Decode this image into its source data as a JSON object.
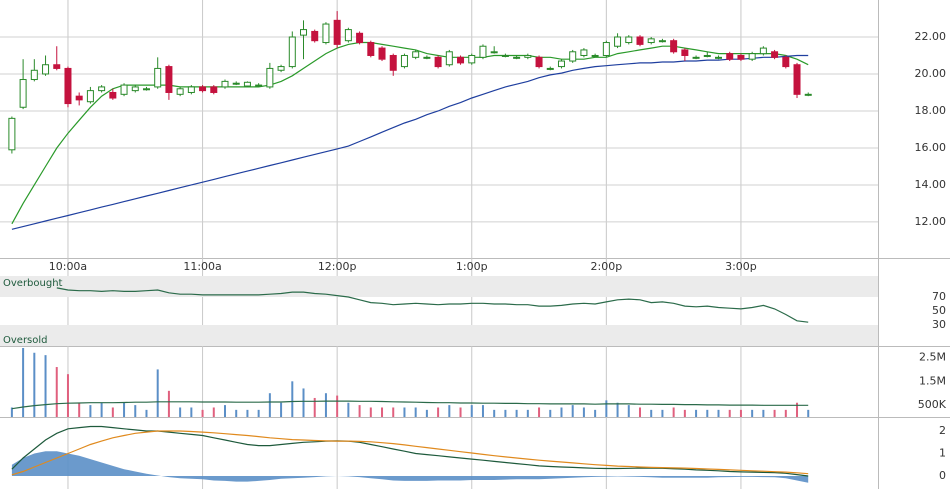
{
  "chart_data": [
    {
      "type": "candlestick",
      "x": [
        575,
        580,
        585,
        590,
        595,
        600,
        605,
        610,
        615,
        620,
        625,
        630,
        635,
        640,
        645,
        650,
        655,
        660,
        665,
        670,
        675,
        680,
        685,
        690,
        695,
        700,
        705,
        710,
        715,
        720,
        725,
        730,
        735,
        740,
        745,
        750,
        755,
        760,
        765,
        770,
        775,
        780,
        785,
        790,
        795,
        800,
        805,
        810,
        815,
        820,
        825,
        830,
        835,
        840,
        845,
        850,
        855,
        860,
        865,
        870,
        875,
        880,
        885,
        890,
        895,
        900,
        905,
        910,
        915,
        920,
        925,
        930
      ],
      "xlim": [
        569.7,
        961.1
      ],
      "xticks": [
        {
          "value": 600,
          "label": "10:00a"
        },
        {
          "value": 660,
          "label": "11:00a"
        },
        {
          "value": 720,
          "label": "12:00p"
        },
        {
          "value": 780,
          "label": "1:00p"
        },
        {
          "value": 840,
          "label": "2:00p"
        },
        {
          "value": 900,
          "label": "3:00p"
        }
      ],
      "open": [
        15.9,
        18.2,
        19.7,
        20.0,
        20.5,
        20.3,
        18.8,
        18.5,
        19.1,
        19.0,
        18.9,
        19.1,
        19.2,
        19.3,
        20.4,
        18.9,
        19.0,
        19.3,
        19.3,
        19.3,
        19.5,
        19.35,
        19.4,
        19.3,
        20.2,
        20.4,
        22.1,
        22.3,
        21.7,
        22.9,
        21.8,
        22.2,
        21.7,
        21.4,
        21.0,
        20.4,
        20.9,
        20.9,
        20.9,
        20.5,
        20.9,
        20.6,
        20.9,
        21.2,
        21.0,
        20.9,
        20.9,
        20.9,
        20.3,
        20.4,
        20.7,
        21.0,
        21.0,
        21.0,
        21.5,
        21.7,
        22.0,
        21.7,
        21.8,
        21.8,
        21.3,
        20.9,
        21.0,
        20.9,
        21.1,
        21.0,
        20.8,
        21.1,
        21.2,
        20.9,
        20.5,
        18.9
      ],
      "high": [
        17.7,
        20.8,
        20.8,
        21.0,
        21.5,
        20.4,
        19.0,
        19.3,
        19.4,
        19.2,
        19.5,
        19.4,
        19.3,
        20.9,
        20.5,
        19.3,
        19.4,
        19.4,
        19.4,
        19.7,
        19.6,
        19.6,
        19.5,
        20.6,
        20.5,
        22.3,
        22.9,
        22.4,
        22.8,
        23.4,
        22.5,
        22.3,
        21.8,
        21.5,
        21.1,
        21.1,
        21.3,
        21.0,
        21.0,
        21.3,
        21.0,
        21.1,
        21.6,
        21.5,
        21.1,
        21.0,
        21.1,
        21.0,
        20.4,
        20.8,
        21.3,
        21.4,
        21.1,
        21.8,
        22.2,
        22.1,
        22.1,
        22.0,
        21.9,
        21.9,
        21.4,
        21.0,
        21.2,
        21.0,
        21.2,
        21.1,
        21.2,
        21.5,
        21.3,
        21.0,
        20.6,
        19.0
      ],
      "low": [
        15.7,
        18.1,
        19.6,
        19.9,
        20.2,
        18.2,
        18.3,
        18.4,
        19.0,
        18.6,
        18.8,
        19.0,
        19.1,
        19.2,
        18.6,
        18.8,
        18.9,
        19.0,
        18.9,
        19.2,
        19.4,
        19.3,
        19.3,
        19.2,
        20.1,
        20.3,
        20.8,
        21.7,
        21.6,
        21.4,
        21.7,
        21.6,
        20.9,
        20.7,
        19.9,
        20.3,
        20.8,
        20.8,
        20.3,
        20.4,
        20.5,
        20.5,
        20.8,
        21.1,
        20.9,
        20.8,
        20.8,
        20.3,
        20.2,
        20.3,
        20.6,
        20.9,
        20.9,
        20.9,
        21.4,
        21.6,
        21.5,
        21.6,
        21.7,
        21.1,
        20.7,
        20.8,
        20.9,
        20.8,
        20.7,
        20.7,
        20.7,
        21.0,
        20.8,
        20.3,
        18.7,
        18.8
      ],
      "close": [
        17.6,
        19.7,
        20.2,
        20.5,
        20.3,
        18.4,
        18.6,
        19.1,
        19.3,
        18.7,
        19.4,
        19.3,
        19.2,
        20.3,
        19.0,
        19.2,
        19.3,
        19.1,
        19.0,
        19.6,
        19.5,
        19.55,
        19.4,
        20.3,
        20.4,
        22.0,
        22.4,
        21.8,
        22.7,
        21.6,
        22.4,
        21.7,
        21.0,
        20.8,
        20.2,
        21.0,
        21.2,
        20.9,
        20.4,
        21.2,
        20.6,
        21.0,
        21.5,
        21.2,
        21.0,
        20.9,
        21.0,
        20.4,
        20.3,
        20.7,
        21.2,
        21.3,
        21.0,
        21.7,
        22.0,
        22.0,
        21.6,
        21.9,
        21.8,
        21.2,
        21.0,
        20.9,
        21.0,
        20.9,
        20.8,
        20.8,
        21.1,
        21.4,
        20.9,
        20.4,
        18.9,
        18.9
      ],
      "up_color": "#2a8a2a",
      "down_color": "#c4123e",
      "series": [
        {
          "color": "#2a9a2a",
          "values": [
            11.9,
            13.0,
            14.0,
            15.0,
            16.0,
            16.8,
            17.5,
            18.2,
            18.8,
            19.2,
            19.4,
            19.4,
            19.4,
            19.4,
            19.4,
            19.3,
            19.3,
            19.3,
            19.3,
            19.3,
            19.3,
            19.3,
            19.3,
            19.4,
            19.6,
            19.9,
            20.3,
            20.7,
            21.1,
            21.4,
            21.6,
            21.7,
            21.7,
            21.6,
            21.5,
            21.4,
            21.3,
            21.1,
            21.0,
            20.9,
            20.9,
            20.9,
            20.9,
            21.0,
            21.0,
            21.0,
            21.0,
            20.9,
            20.9,
            20.8,
            20.8,
            20.8,
            20.9,
            20.9,
            21.1,
            21.2,
            21.3,
            21.4,
            21.5,
            21.5,
            21.4,
            21.3,
            21.2,
            21.1,
            21.1,
            21.1,
            21.1,
            21.1,
            21.1,
            21.0,
            20.8,
            20.5
          ]
        },
        {
          "color": "#1f3f9f",
          "values": [
            11.6,
            11.75,
            11.9,
            12.05,
            12.2,
            12.35,
            12.5,
            12.65,
            12.8,
            12.95,
            13.1,
            13.25,
            13.4,
            13.55,
            13.7,
            13.85,
            14.0,
            14.15,
            14.3,
            14.45,
            14.6,
            14.75,
            14.9,
            15.05,
            15.2,
            15.35,
            15.5,
            15.65,
            15.8,
            15.95,
            16.1,
            16.35,
            16.6,
            16.85,
            17.1,
            17.35,
            17.55,
            17.8,
            18.0,
            18.25,
            18.45,
            18.7,
            18.9,
            19.1,
            19.3,
            19.45,
            19.6,
            19.8,
            19.95,
            20.05,
            20.2,
            20.3,
            20.4,
            20.45,
            20.5,
            20.55,
            20.6,
            20.6,
            20.65,
            20.65,
            20.7,
            20.7,
            20.75,
            20.75,
            20.8,
            20.8,
            20.85,
            20.9,
            20.9,
            20.95,
            21.0,
            21.0
          ]
        }
      ],
      "ylim": [
        10.05,
        24.0
      ],
      "yticks": [
        {
          "value": 12,
          "label": "12.00"
        },
        {
          "value": 14,
          "label": "14.00"
        },
        {
          "value": 16,
          "label": "16.00"
        },
        {
          "value": 18,
          "label": "18.00"
        },
        {
          "value": 20,
          "label": "20.00"
        },
        {
          "value": 22,
          "label": "22.00"
        }
      ],
      "grid": true
    },
    {
      "type": "line",
      "overbought_label": "Overbought",
      "oversold_label": "Oversold",
      "band_color": "#ebebeb",
      "series": [
        {
          "color": "#2b6b4a",
          "values": [
            null,
            null,
            null,
            null,
            83,
            80,
            79,
            79,
            78,
            79,
            78,
            78,
            79,
            80,
            76,
            74,
            74,
            73,
            73,
            73,
            73,
            73,
            73,
            74,
            75,
            77,
            77,
            75,
            74,
            72,
            70,
            66,
            62,
            61,
            59,
            60,
            61,
            60,
            59,
            60,
            60,
            61,
            61,
            60,
            60,
            59,
            59,
            57,
            57,
            58,
            60,
            61,
            60,
            63,
            66,
            67,
            66,
            62,
            63,
            61,
            57,
            56,
            57,
            55,
            54,
            53,
            55,
            58,
            53,
            45,
            36,
            34
          ]
        }
      ],
      "ylim": [
        0,
        100
      ],
      "yticks": [
        70,
        50,
        30
      ],
      "grid": false
    },
    {
      "type": "bar",
      "values": [
        400000,
        2900000,
        2700000,
        2600000,
        2100000,
        1800000,
        600000,
        500000,
        600000,
        400000,
        600000,
        500000,
        300000,
        2000000,
        1100000,
        400000,
        400000,
        300000,
        400000,
        500000,
        300000,
        300000,
        300000,
        1000000,
        600000,
        1500000,
        1200000,
        800000,
        1000000,
        900000,
        600000,
        500000,
        400000,
        400000,
        400000,
        400000,
        400000,
        300000,
        400000,
        500000,
        400000,
        500000,
        500000,
        300000,
        300000,
        300000,
        300000,
        400000,
        300000,
        400000,
        500000,
        400000,
        300000,
        700000,
        600000,
        500000,
        400000,
        300000,
        300000,
        400000,
        300000,
        300000,
        300000,
        300000,
        300000,
        300000,
        300000,
        300000,
        300000,
        300000,
        600000,
        300000
      ],
      "up_color": "#5b8fc7",
      "down_color": "#e0607e",
      "series": [
        {
          "color": "#2b6b4a",
          "values": [
            350000,
            420000,
            480000,
            520000,
            560000,
            580000,
            590000,
            600000,
            600000,
            600000,
            610000,
            620000,
            620000,
            640000,
            640000,
            640000,
            640000,
            630000,
            630000,
            630000,
            620000,
            620000,
            620000,
            630000,
            630000,
            650000,
            660000,
            660000,
            670000,
            670000,
            670000,
            660000,
            660000,
            650000,
            640000,
            630000,
            620000,
            610000,
            600000,
            600000,
            590000,
            590000,
            580000,
            580000,
            570000,
            570000,
            560000,
            560000,
            550000,
            550000,
            550000,
            550000,
            540000,
            550000,
            550000,
            550000,
            540000,
            540000,
            530000,
            530000,
            520000,
            520000,
            510000,
            510000,
            500000,
            500000,
            500000,
            490000,
            490000,
            490000,
            490000,
            490000
          ]
        }
      ],
      "ylim": [
        0,
        2900000
      ],
      "yticks": [
        {
          "value": 500000,
          "label": "500K"
        },
        {
          "value": 1500000,
          "label": "1.5M"
        },
        {
          "value": 2500000,
          "label": "2.5M"
        }
      ],
      "grid": false
    },
    {
      "type": "macd",
      "histogram": {
        "color": "#5b8fc7",
        "values": [
          0.5,
          0.8,
          1.0,
          1.1,
          1.1,
          1.0,
          0.9,
          0.75,
          0.6,
          0.45,
          0.3,
          0.2,
          0.1,
          0.02,
          -0.05,
          -0.1,
          -0.12,
          -0.15,
          -0.2,
          -0.22,
          -0.25,
          -0.25,
          -0.22,
          -0.18,
          -0.12,
          -0.1,
          -0.08,
          -0.05,
          -0.02,
          0,
          -0.02,
          -0.05,
          -0.1,
          -0.15,
          -0.2,
          -0.22,
          -0.22,
          -0.22,
          -0.2,
          -0.2,
          -0.2,
          -0.18,
          -0.18,
          -0.18,
          -0.16,
          -0.15,
          -0.15,
          -0.15,
          -0.12,
          -0.1,
          -0.08,
          -0.06,
          -0.04,
          -0.03,
          -0.02,
          -0.03,
          -0.04,
          -0.06,
          -0.08,
          -0.08,
          -0.08,
          -0.08,
          -0.08,
          -0.06,
          -0.05,
          -0.04,
          -0.04,
          -0.05,
          -0.06,
          -0.1,
          -0.2,
          -0.3
        ]
      },
      "series": [
        {
          "color": "#1e5a3c",
          "values": [
            0.3,
            0.8,
            1.2,
            1.6,
            1.9,
            2.1,
            2.15,
            2.2,
            2.2,
            2.15,
            2.1,
            2.05,
            2.0,
            2.0,
            1.95,
            1.9,
            1.85,
            1.8,
            1.7,
            1.6,
            1.5,
            1.4,
            1.35,
            1.35,
            1.4,
            1.45,
            1.5,
            1.52,
            1.55,
            1.56,
            1.55,
            1.5,
            1.4,
            1.3,
            1.2,
            1.1,
            1.0,
            0.95,
            0.9,
            0.85,
            0.8,
            0.75,
            0.7,
            0.65,
            0.6,
            0.55,
            0.5,
            0.45,
            0.42,
            0.4,
            0.38,
            0.36,
            0.34,
            0.33,
            0.33,
            0.34,
            0.35,
            0.35,
            0.34,
            0.32,
            0.3,
            0.27,
            0.25,
            0.23,
            0.2,
            0.18,
            0.17,
            0.16,
            0.15,
            0.12,
            0.06,
            0.0
          ]
        },
        {
          "color": "#e08a1e",
          "values": [
            0.05,
            0.2,
            0.4,
            0.6,
            0.8,
            1.0,
            1.2,
            1.4,
            1.55,
            1.7,
            1.8,
            1.9,
            1.95,
            2.0,
            2.0,
            2.0,
            1.98,
            1.95,
            1.92,
            1.88,
            1.84,
            1.8,
            1.75,
            1.7,
            1.66,
            1.62,
            1.6,
            1.58,
            1.56,
            1.55,
            1.55,
            1.54,
            1.52,
            1.48,
            1.44,
            1.38,
            1.32,
            1.26,
            1.2,
            1.14,
            1.08,
            1.02,
            0.96,
            0.9,
            0.85,
            0.8,
            0.75,
            0.7,
            0.66,
            0.62,
            0.58,
            0.54,
            0.5,
            0.47,
            0.44,
            0.42,
            0.4,
            0.38,
            0.37,
            0.36,
            0.35,
            0.33,
            0.31,
            0.29,
            0.27,
            0.25,
            0.23,
            0.21,
            0.19,
            0.17,
            0.14,
            0.1
          ]
        }
      ],
      "ylim": [
        -0.58,
        2.49
      ],
      "yticks": [
        2,
        1,
        0
      ],
      "grid": false
    }
  ]
}
